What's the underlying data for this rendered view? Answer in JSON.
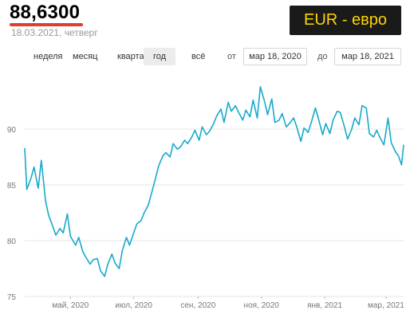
{
  "header": {
    "rate": "88,6300",
    "date": "18.03.2021, четверг",
    "currency": "EUR - евро"
  },
  "periods": [
    "неделя",
    "месяц",
    "квартал",
    "год",
    "всё"
  ],
  "active_period": "год",
  "range": {
    "from_label": "от",
    "from_value": "мар 18, 2020",
    "to_label": "до",
    "to_value": "мар 18, 2021"
  },
  "colors": {
    "line": "#17a9cb",
    "accent_underline": "#e33b2e",
    "badge_bg": "#1a1a1a",
    "badge_text": "#ffd400"
  },
  "chart_data": {
    "type": "line",
    "ylim": [
      75,
      95
    ],
    "yticks": [
      75,
      80,
      85,
      90
    ],
    "xtick_labels": [
      "май, 2020",
      "июл, 2020",
      "сен, 2020",
      "ноя, 2020",
      "янв, 2021",
      "мар, 2021"
    ],
    "xtick_dates": [
      "2020-05-01",
      "2020-07-01",
      "2020-09-01",
      "2020-11-01",
      "2021-01-01",
      "2021-03-01"
    ],
    "x_range": [
      "2020-03-18",
      "2021-03-18"
    ],
    "grid": true,
    "series": [
      {
        "x": [
          "2020-03-18",
          "2020-03-20",
          "2020-03-24",
          "2020-03-27",
          "2020-03-31",
          "2020-04-03",
          "2020-04-07",
          "2020-04-10",
          "2020-04-14",
          "2020-04-17",
          "2020-04-21",
          "2020-04-24",
          "2020-04-28",
          "2020-05-01",
          "2020-05-06",
          "2020-05-09",
          "2020-05-13",
          "2020-05-16",
          "2020-05-20",
          "2020-05-23",
          "2020-05-27",
          "2020-05-30",
          "2020-06-03",
          "2020-06-06",
          "2020-06-10",
          "2020-06-13",
          "2020-06-17",
          "2020-06-20",
          "2020-06-24",
          "2020-06-27",
          "2020-07-01",
          "2020-07-04",
          "2020-07-08",
          "2020-07-11",
          "2020-07-15",
          "2020-07-18",
          "2020-07-22",
          "2020-07-25",
          "2020-07-29",
          "2020-08-01",
          "2020-08-05",
          "2020-08-08",
          "2020-08-12",
          "2020-08-15",
          "2020-08-19",
          "2020-08-22",
          "2020-08-26",
          "2020-08-29",
          "2020-09-02",
          "2020-09-05",
          "2020-09-09",
          "2020-09-12",
          "2020-09-16",
          "2020-09-19",
          "2020-09-23",
          "2020-09-26",
          "2020-09-30",
          "2020-10-03",
          "2020-10-07",
          "2020-10-10",
          "2020-10-14",
          "2020-10-17",
          "2020-10-21",
          "2020-10-24",
          "2020-10-28",
          "2020-10-31",
          "2020-11-04",
          "2020-11-07",
          "2020-11-11",
          "2020-11-14",
          "2020-11-18",
          "2020-11-21",
          "2020-11-25",
          "2020-11-28",
          "2020-12-02",
          "2020-12-05",
          "2020-12-09",
          "2020-12-12",
          "2020-12-16",
          "2020-12-19",
          "2020-12-23",
          "2020-12-26",
          "2020-12-30",
          "2021-01-02",
          "2021-01-06",
          "2021-01-09",
          "2021-01-13",
          "2021-01-16",
          "2021-01-20",
          "2021-01-23",
          "2021-01-27",
          "2021-01-30",
          "2021-02-03",
          "2021-02-06",
          "2021-02-10",
          "2021-02-13",
          "2021-02-17",
          "2021-02-20",
          "2021-02-24",
          "2021-02-27",
          "2021-03-03",
          "2021-03-06",
          "2021-03-10",
          "2021-03-13",
          "2021-03-16",
          "2021-03-18"
        ],
        "y": [
          88.3,
          84.6,
          85.6,
          86.6,
          84.7,
          87.2,
          83.6,
          82.3,
          81.3,
          80.5,
          81.1,
          80.7,
          82.4,
          80.4,
          79.6,
          80.3,
          79.0,
          78.5,
          77.9,
          78.3,
          78.4,
          77.3,
          76.8,
          77.9,
          78.8,
          78.0,
          77.5,
          79.1,
          80.3,
          79.6,
          80.7,
          81.5,
          81.8,
          82.5,
          83.2,
          84.2,
          85.6,
          86.7,
          87.6,
          87.9,
          87.5,
          88.7,
          88.2,
          88.4,
          89.0,
          88.7,
          89.3,
          89.9,
          89.0,
          90.2,
          89.5,
          89.8,
          90.5,
          91.2,
          91.8,
          90.6,
          92.4,
          91.6,
          92.1,
          91.5,
          90.8,
          91.7,
          91.1,
          92.6,
          91.0,
          93.8,
          92.5,
          91.3,
          92.7,
          90.6,
          90.8,
          91.4,
          90.2,
          90.5,
          91.0,
          90.2,
          88.9,
          90.1,
          89.7,
          90.6,
          91.9,
          90.9,
          89.5,
          90.5,
          89.6,
          90.8,
          91.6,
          91.5,
          90.2,
          89.1,
          90.0,
          91.0,
          90.4,
          92.1,
          91.9,
          89.6,
          89.3,
          89.9,
          89.1,
          88.6,
          91.0,
          88.8,
          88.0,
          87.6,
          86.8,
          88.6
        ]
      }
    ]
  }
}
